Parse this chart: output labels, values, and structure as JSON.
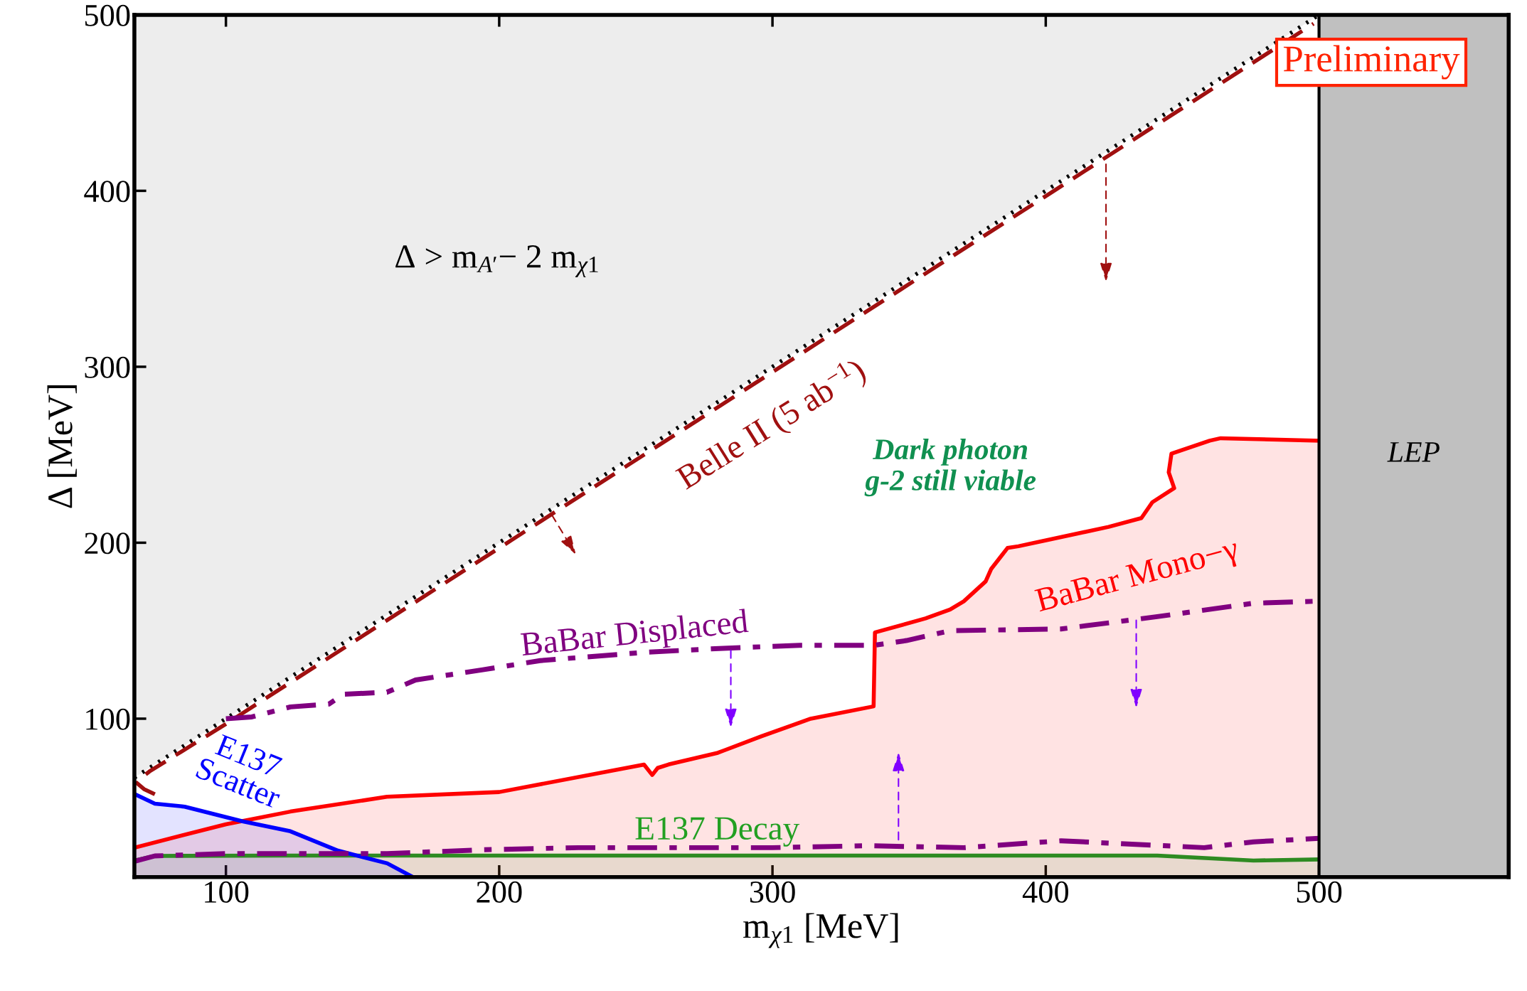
{
  "chart_data": {
    "type": "line",
    "xlabel": "m$_{χ1}$ [MeV]",
    "ylabel": "Δ [MeV]",
    "xlim": [
      66.5,
      569.4
    ],
    "ylim": [
      10,
      500
    ],
    "xticks": [
      100,
      200,
      300,
      400,
      500
    ],
    "yticks": [
      100,
      200,
      300,
      400,
      500
    ],
    "grid": false,
    "legend": false,
    "series": [
      {
        "type": "line",
        "color": "#000000",
        "line_style": "dotted",
        "x": [
          66.5,
          100,
          200,
          300,
          400,
          500
        ],
        "values": [
          66.5,
          100,
          200,
          300,
          400,
          500
        ]
      },
      {
        "type": "area",
        "color": "#ff0000",
        "x": [
          66.5,
          100,
          123.6,
          158.9,
          200,
          253,
          256,
          258,
          262,
          280,
          296,
          314,
          337,
          337.5,
          356,
          365,
          370,
          378,
          380,
          384,
          386,
          390,
          423,
          435,
          439,
          447,
          445,
          446,
          460,
          464,
          500
        ],
        "values": [
          26.7,
          40,
          47.2,
          55.6,
          58.3,
          73.9,
          68,
          72,
          74,
          80.6,
          90,
          100,
          107,
          149,
          157,
          162,
          166.7,
          178,
          185,
          193,
          197,
          198,
          209,
          214,
          223,
          231,
          240,
          250.6,
          258,
          259.4,
          258
        ]
      },
      {
        "type": "area",
        "color": "#2e8b22",
        "x": [
          66.5,
          74,
          123.6,
          440.8,
          476,
          500
        ],
        "values": [
          19.4,
          22,
          22.2,
          22.2,
          19.4,
          20
        ]
      },
      {
        "type": "area",
        "color": "#0000ff",
        "x": [
          66.5,
          74,
          84.9,
          106,
          123.6,
          141,
          159,
          168.4
        ],
        "values": [
          57.2,
          51.7,
          50,
          41.7,
          36,
          25,
          17.8,
          10
        ]
      },
      {
        "color": "#a01010",
        "line_style": "dashed",
        "x": [
          74,
          70,
          67,
          72,
          100,
          200,
          300,
          400,
          498
        ],
        "values": [
          57,
          60,
          64,
          70,
          97,
          197,
          297,
          397,
          495
        ]
      },
      {
        "type": "line",
        "color": "#800080",
        "line_style": "dashdot",
        "x": [
          100,
          109.5,
          123.6,
          137.7,
          143,
          158.9,
          169.4,
          194,
          215,
          254,
          282,
          310,
          337,
          349,
          365,
          405.6,
          440.8,
          476,
          498
        ],
        "values": [
          100,
          101,
          106.7,
          108.3,
          113.9,
          115,
          122,
          127.8,
          133,
          137.8,
          140,
          141.7,
          141.7,
          144.4,
          150,
          151,
          158,
          165.6,
          166.7
        ]
      },
      {
        "type": "line",
        "color": "#800080",
        "line_style": "dashdot",
        "x": [
          66.5,
          74,
          100,
          159,
          194,
          229,
          300,
          335,
          370,
          405.6,
          458,
          476,
          500
        ],
        "values": [
          18.9,
          22,
          23.3,
          23.3,
          25.5,
          26.7,
          26.7,
          27.8,
          26.7,
          30.6,
          26.7,
          30,
          32
        ]
      }
    ],
    "bands": [
      {
        "axis": "x",
        "from": 500,
        "to": 569.4,
        "label": "LEP",
        "color": "#c0c0c0"
      }
    ],
    "annotations": [
      "Δ > m$_{A′}$− 2 m$_{χ1}$",
      "Belle II (5 ab$^{−1}$)",
      "Dark photon\ng-2 still viable",
      "BaBar Mono−γ",
      "BaBar Displaced",
      "E137\nScatter",
      "E137 Decay",
      "Preliminary"
    ]
  }
}
